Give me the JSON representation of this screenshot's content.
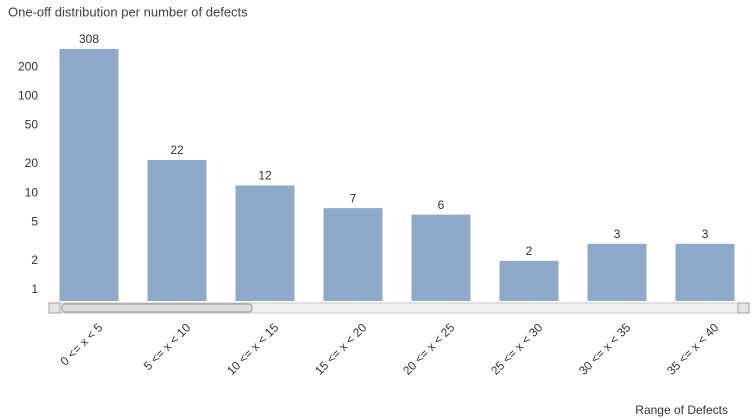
{
  "chart_data": {
    "type": "bar",
    "title": "One-off distribution per number of defects",
    "x_label": "Range of Defects",
    "categories": [
      "0 <= x < 5",
      "5 <= x < 10",
      "10 <= x < 15",
      "15 <= x < 20",
      "20 <= x < 25",
      "25 <= x < 30",
      "30 <= x < 35",
      "35 <= x < 40"
    ],
    "values": [
      308,
      22,
      12,
      7,
      6,
      2,
      3,
      3
    ],
    "color": "#8eaacb",
    "log_scale": true,
    "ylim": [
      0.77,
      400
    ],
    "yticks": [
      1,
      2,
      5,
      10,
      20,
      50,
      100,
      200
    ],
    "grid": false
  }
}
